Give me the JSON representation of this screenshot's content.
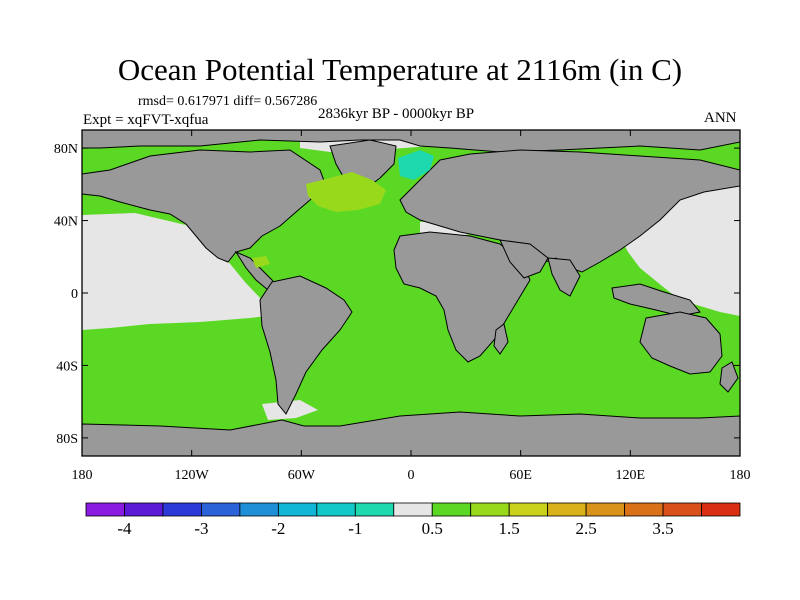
{
  "title": "Ocean Potential Temperature at 2116m (in C)",
  "stats": "rmsd= 0.617971  diff= 0.567286",
  "subtitle": "2836kyr BP - 0000kyr BP",
  "experiment": "Expt = xqFVT-xqfua",
  "season": "ANN",
  "map": {
    "projection": "cylindrical-equidistant",
    "land_color": "#999999",
    "missing_color": "#e6e6e6",
    "lat_ticks": [
      {
        "value": 80,
        "label": "80N"
      },
      {
        "value": 40,
        "label": "40N"
      },
      {
        "value": 0,
        "label": "0"
      },
      {
        "value": -40,
        "label": "40S"
      },
      {
        "value": -80,
        "label": "80S"
      }
    ],
    "lon_ticks": [
      {
        "value": -180,
        "label": "180"
      },
      {
        "value": -120,
        "label": "120W"
      },
      {
        "value": -60,
        "label": "60W"
      },
      {
        "value": 0,
        "label": "0"
      },
      {
        "value": 60,
        "label": "60E"
      },
      {
        "value": 120,
        "label": "120E"
      },
      {
        "value": 180,
        "label": "180"
      }
    ],
    "dominant_anomaly_color": "#5ad823"
  },
  "colorbar": {
    "colors": [
      "#8a1be0",
      "#5a1ad6",
      "#2c3ad8",
      "#2b62d8",
      "#1f8fd8",
      "#11b5d6",
      "#12c8c8",
      "#1ed9ad",
      "#e6e6e6",
      "#5ad823",
      "#99d91c",
      "#c9d11a",
      "#d9b21a",
      "#d9921a",
      "#d97118",
      "#d9501a",
      "#d92e12"
    ],
    "labels": [
      {
        "text": "-4",
        "boundary": 1
      },
      {
        "text": "-3",
        "boundary": 3
      },
      {
        "text": "-2",
        "boundary": 5
      },
      {
        "text": "-1",
        "boundary": 7
      },
      {
        "text": "0.5",
        "boundary": 9
      },
      {
        "text": "1.5",
        "boundary": 11
      },
      {
        "text": "2.5",
        "boundary": 13
      },
      {
        "text": "3.5",
        "boundary": 15
      }
    ]
  }
}
